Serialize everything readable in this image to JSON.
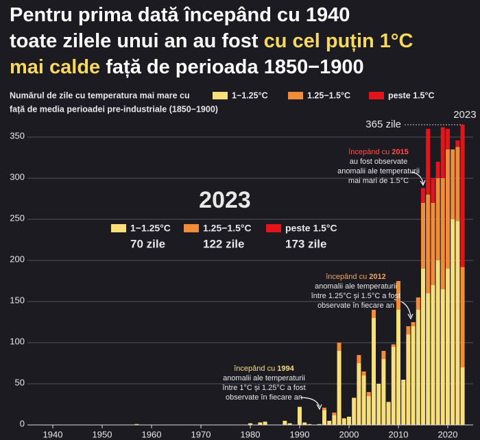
{
  "chart_data": {
    "type": "stacked_bar",
    "title_lines": [
      [
        {
          "text": "Pentru prima dată începând cu 1940",
          "highlight": false
        }
      ],
      [
        {
          "text": "toate zilele unui an au fost ",
          "highlight": false
        },
        {
          "text": "cu cel puțin 1°C",
          "highlight": true
        }
      ],
      [
        {
          "text": "mai calde",
          "highlight": true
        },
        {
          "text": " față de perioada 1850−1900",
          "highlight": false
        }
      ]
    ],
    "highlight_color": "#f9d85e",
    "subtitle_lines": [
      "Numărul de zile cu temperatura mai mare cu",
      "față de media perioadei pre-industriale (1850−1900)"
    ],
    "x": [
      1940,
      1941,
      1942,
      1943,
      1944,
      1945,
      1946,
      1947,
      1948,
      1949,
      1950,
      1951,
      1952,
      1953,
      1954,
      1955,
      1956,
      1957,
      1958,
      1959,
      1960,
      1961,
      1962,
      1963,
      1964,
      1965,
      1966,
      1967,
      1968,
      1969,
      1970,
      1971,
      1972,
      1973,
      1974,
      1975,
      1976,
      1977,
      1978,
      1979,
      1980,
      1981,
      1982,
      1983,
      1984,
      1985,
      1986,
      1987,
      1988,
      1989,
      1990,
      1991,
      1992,
      1993,
      1994,
      1995,
      1996,
      1997,
      1998,
      1999,
      2000,
      2001,
      2002,
      2003,
      2004,
      2005,
      2006,
      2007,
      2008,
      2009,
      2010,
      2011,
      2012,
      2013,
      2014,
      2015,
      2016,
      2017,
      2018,
      2019,
      2020,
      2021,
      2022,
      2023
    ],
    "series": [
      {
        "name": "1−1.25°C",
        "color": "#f9df7b",
        "values": [
          0,
          0,
          0,
          0,
          0,
          0,
          0,
          0,
          0,
          0,
          0,
          0,
          0,
          0,
          0,
          0,
          0,
          1,
          0,
          0,
          0,
          0,
          0,
          0,
          0,
          0,
          0,
          0,
          0,
          0,
          0,
          0,
          0,
          0,
          0,
          0,
          0,
          0,
          0,
          0,
          2,
          0,
          3,
          4,
          0,
          0,
          0,
          5,
          2,
          0,
          22,
          3,
          1,
          0,
          1,
          18,
          5,
          12,
          90,
          8,
          10,
          33,
          75,
          60,
          35,
          130,
          50,
          80,
          28,
          95,
          140,
          55,
          110,
          120,
          140,
          190,
          160,
          170,
          200,
          165,
          190,
          250,
          248,
          70
        ]
      },
      {
        "name": "1.25−1.5°C",
        "color": "#f28c38",
        "values": [
          0,
          0,
          0,
          0,
          0,
          0,
          0,
          0,
          0,
          0,
          0,
          0,
          0,
          0,
          0,
          0,
          0,
          0,
          0,
          0,
          0,
          0,
          0,
          0,
          0,
          0,
          0,
          0,
          0,
          0,
          0,
          0,
          0,
          0,
          0,
          0,
          0,
          0,
          0,
          0,
          0,
          0,
          0,
          0,
          0,
          0,
          0,
          0,
          0,
          0,
          0,
          0,
          0,
          0,
          0,
          3,
          0,
          3,
          10,
          0,
          0,
          0,
          10,
          5,
          5,
          10,
          0,
          10,
          0,
          3,
          35,
          0,
          10,
          5,
          15,
          80,
          120,
          100,
          100,
          135,
          145,
          85,
          90,
          122
        ]
      },
      {
        "name": "peste 1.5°C",
        "color": "#e3141c",
        "values": [
          0,
          0,
          0,
          0,
          0,
          0,
          0,
          0,
          0,
          0,
          0,
          0,
          0,
          0,
          0,
          0,
          0,
          0,
          0,
          0,
          0,
          0,
          0,
          0,
          0,
          0,
          0,
          0,
          0,
          0,
          0,
          0,
          0,
          0,
          0,
          0,
          0,
          0,
          0,
          0,
          0,
          0,
          0,
          0,
          0,
          0,
          0,
          0,
          0,
          0,
          0,
          0,
          0,
          0,
          0,
          0,
          0,
          0,
          0,
          0,
          0,
          0,
          0,
          0,
          0,
          0,
          0,
          0,
          0,
          0,
          0,
          0,
          0,
          0,
          0,
          18,
          80,
          30,
          20,
          62,
          25,
          0,
          8,
          173
        ]
      }
    ],
    "xlim": [
      1935,
      2025
    ],
    "xticks": [
      1940,
      1950,
      1960,
      1970,
      1980,
      1990,
      2000,
      2010,
      2020
    ],
    "ylim": [
      0,
      368
    ],
    "yticks": [
      0,
      50,
      100,
      150,
      200,
      250,
      300,
      350
    ],
    "grid": true,
    "max_marker": {
      "value": 365,
      "label": "365 zile",
      "year_label": "2023"
    },
    "inset": {
      "title": "2023",
      "value_labels": [
        "70 zile",
        "122 zile",
        "173 zile"
      ]
    },
    "annotations": [
      {
        "lead": "începând cu ",
        "year": "2015",
        "lines": [
          "au fost observate",
          "anomalii ale temperaturii",
          "mai mari de 1.5°C"
        ],
        "color": "#ff4d4d"
      },
      {
        "lead": "începând cu ",
        "year": "2012",
        "lines": [
          "anomalii ale temperaturii",
          "între 1.25°C și 1.5°C a fost",
          "observate în fiecare an"
        ],
        "color": "#f7a35c"
      },
      {
        "lead": "începând cu ",
        "year": "1994",
        "lines": [
          "anomalii ale temperaturii",
          "între 1°C și 1.25°C a fost",
          "observate în fiecare an"
        ],
        "color": "#f9df7b"
      }
    ]
  }
}
